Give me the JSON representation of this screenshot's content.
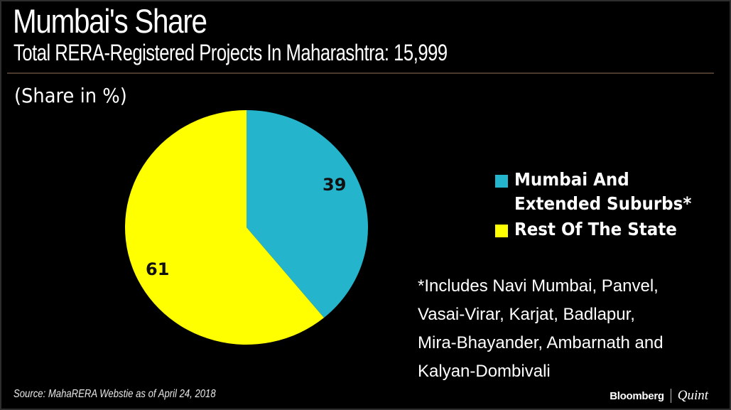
{
  "header": {
    "title": "Mumbai's Share",
    "subtitle": "Total RERA-Registered Projects In Maharashtra: 15,999",
    "unit_label": "(Share in %)"
  },
  "legend": {
    "items": [
      {
        "label": "Mumbai And\nExtended Suburbs*",
        "color": "#24b4cc"
      },
      {
        "label": "Rest Of The State",
        "color": "#ffff00"
      }
    ]
  },
  "footnote": {
    "lines": [
      "*Includes Navi Mumbai, Panvel,",
      "Vasai-Virar, Karjat, Badlapur,",
      "Mira-Bhayander, Ambarnath and",
      "Kalyan-Dombivali"
    ]
  },
  "footer": {
    "source": "Source: MahaRERA Webstie as of April 24, 2018",
    "brand_primary": "Bloomberg",
    "brand_secondary": "Quint"
  },
  "chart_data": {
    "type": "pie",
    "title": "Mumbai's Share",
    "subtitle": "Total RERA-Registered Projects In Maharashtra: 15,999",
    "unit": "(Share in %)",
    "categories": [
      "Mumbai And Extended Suburbs*",
      "Rest Of The State"
    ],
    "values": [
      39,
      61
    ],
    "colors": [
      "#24b4cc",
      "#ffff00"
    ],
    "data_labels": [
      "39",
      "61"
    ],
    "start_angle": "12 o'clock, clockwise",
    "legend_position": "right",
    "annotations": [
      "*Includes Navi Mumbai, Panvel, Vasai-Virar, Karjat, Badlapur, Mira-Bhayander, Ambarnath and Kalyan-Dombivali"
    ],
    "source": "Source: MahaRERA Webstie as of April 24, 2018"
  },
  "colors": {
    "background": "#000000",
    "text": "#ffffff",
    "divider": "#4a3a2e",
    "mumbai": "#24b4cc",
    "rest": "#ffff00"
  }
}
